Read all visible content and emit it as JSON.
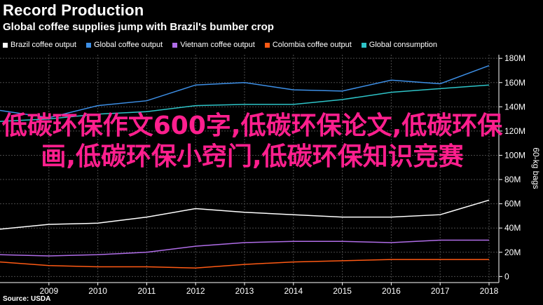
{
  "header": {
    "title": "Record Production",
    "subtitle": "Global coffee supplies jump with Brazil's bumber crop"
  },
  "source": "Source: USDA",
  "overlay_text": "低碳环保作文600字,低碳环保论文,低碳环保画,低碳环保小窍门,低碳环保知识竞赛",
  "chart_data": {
    "type": "line",
    "title": "Record Production",
    "subtitle": "Global coffee supplies jump with Brazil's bumber crop",
    "xlabel": "",
    "ylabel": "60-kg bags",
    "x": [
      2008,
      2009,
      2010,
      2011,
      2012,
      2013,
      2014,
      2015,
      2016,
      2017,
      2018
    ],
    "x_ticks": [
      "2009",
      "2010",
      "2011",
      "2012",
      "2013",
      "2014",
      "2015",
      "2016",
      "2017",
      "2018"
    ],
    "ylim": [
      -5,
      183
    ],
    "y_ticks": [
      0,
      20,
      40,
      60,
      80,
      100,
      120,
      140,
      160,
      180
    ],
    "y_tick_labels": [
      "0",
      "20M",
      "40M",
      "60M",
      "80M",
      "100M",
      "120M",
      "140M",
      "160M",
      "180M"
    ],
    "grid": true,
    "legend_position": "top-left",
    "series": [
      {
        "name": "Brazil coffee output",
        "color": "#ffffff",
        "values": [
          39,
          43,
          44,
          49,
          56,
          53,
          51,
          49,
          49,
          51,
          63
        ]
      },
      {
        "name": "Global coffee output",
        "color": "#3d8fe6",
        "values": [
          137,
          131,
          141,
          145,
          158,
          160,
          154,
          153,
          162,
          159,
          174
        ]
      },
      {
        "name": "Vietnam coffee output",
        "color": "#b06de8",
        "values": [
          18,
          17,
          18,
          20,
          25,
          28,
          29,
          29,
          28,
          30,
          30
        ]
      },
      {
        "name": "Colombia coffee output",
        "color": "#ff5a14",
        "values": [
          12,
          9,
          8,
          8,
          7,
          10,
          12,
          13,
          14,
          14,
          14
        ]
      },
      {
        "name": "Global consumption",
        "color": "#2ec4c8",
        "values": [
          128,
          130,
          134,
          136,
          141,
          142,
          142,
          146,
          152,
          155,
          158
        ]
      }
    ]
  }
}
